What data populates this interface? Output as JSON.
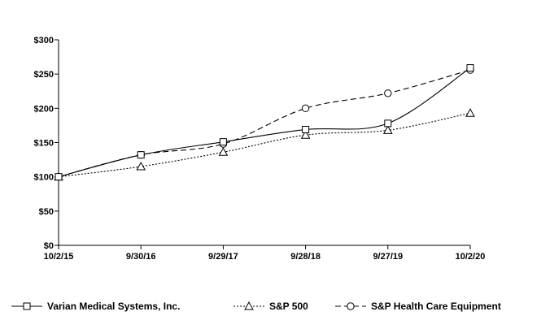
{
  "chart_data": {
    "type": "line",
    "title": "",
    "xlabel": "",
    "ylabel": "",
    "categories": [
      "10/2/15",
      "9/30/16",
      "9/29/17",
      "9/28/18",
      "9/27/19",
      "10/2/20"
    ],
    "y_ticks": [
      "$0",
      "$50",
      "$100",
      "$150",
      "$200",
      "$250",
      "$300"
    ],
    "y_tick_values": [
      0,
      50,
      100,
      150,
      200,
      250,
      300
    ],
    "ylim": [
      0,
      300
    ],
    "grid": false,
    "legend_position": "bottom",
    "series": [
      {
        "name": "Varian Medical Systems, Inc.",
        "values": [
          100,
          132,
          151,
          169,
          178,
          259
        ],
        "marker": "square",
        "dash": "solid"
      },
      {
        "name": "S&P 500",
        "values": [
          100,
          115,
          136,
          161,
          168,
          193
        ],
        "marker": "triangle",
        "dash": "dotted"
      },
      {
        "name": "S&P Health Care Equipment",
        "values": [
          100,
          132,
          148,
          200,
          222,
          256
        ],
        "marker": "circle",
        "dash": "dashed"
      }
    ]
  }
}
